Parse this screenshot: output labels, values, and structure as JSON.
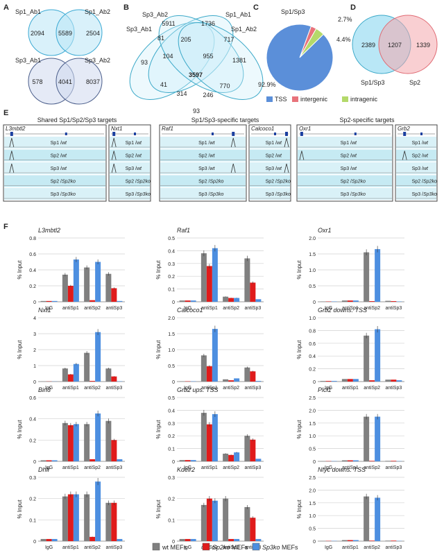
{
  "panel_letters": [
    "A",
    "B",
    "C",
    "D",
    "E",
    "F"
  ],
  "panelA": {
    "venn1": {
      "left_label": "Sp1_Ab1",
      "right_label": "Sp1_Ab2",
      "left": "2094",
      "overlap": "5589",
      "right": "2504"
    },
    "venn2": {
      "left_label": "Sp3_Ab1",
      "right_label": "Sp3_Ab2",
      "left": "578",
      "overlap": "4041",
      "right": "8037"
    }
  },
  "panelB": {
    "labels": [
      "Sp3_Ab2",
      "Sp3_Ab1",
      "Sp1_Ab1",
      "Sp1_Ab2"
    ],
    "numbers": [
      "5911",
      "1736",
      "81",
      "205",
      "717",
      "93",
      "104",
      "955",
      "1381",
      "3597",
      "41",
      "770",
      "314",
      "246",
      "93"
    ]
  },
  "panelC": {
    "title": "Sp1/Sp3",
    "slices": [
      {
        "name": "TSS",
        "value": 92.9,
        "label": "92.9%",
        "color": "#5b8fd9"
      },
      {
        "name": "intergenic",
        "value": 2.7,
        "label": "2.7%",
        "color": "#e8737b"
      },
      {
        "name": "intragenic",
        "value": 4.4,
        "label": "4.4%",
        "color": "#b4d96a"
      }
    ]
  },
  "panelD": {
    "left_label": "Sp1/Sp3",
    "right_label": "Sp2",
    "left": "2389",
    "overlap": "1207",
    "right": "1339"
  },
  "panelE": {
    "groups": [
      {
        "title": "Shared Sp1/Sp2/Sp3 targets",
        "genes": [
          "L3mbtl2",
          "Nxt1"
        ]
      },
      {
        "title": "Sp1/Sp3-specific targets",
        "genes": [
          "Raf1",
          "Calcoco1"
        ]
      },
      {
        "title": "Sp2-specific targets",
        "genes": [
          "Oxr1",
          "Grb2"
        ]
      }
    ],
    "tracks": [
      [
        "Sp1 / ",
        "wt"
      ],
      [
        "Sp2 / ",
        "wt"
      ],
      [
        "Sp3 / ",
        "wt"
      ],
      [
        "Sp2 / ",
        "Sp2ko"
      ],
      [
        "Sp3 / ",
        "Sp3ko"
      ]
    ]
  },
  "chart_data": [
    {
      "type": "bar",
      "title": "L3mbtl2",
      "ylabel": "% Input",
      "ylim": [
        0,
        0.8
      ],
      "ticks": [
        "0",
        "0.2",
        "0.4",
        "0.6",
        "0.8"
      ],
      "categories": [
        "IgG",
        "antiSp1",
        "antiSp2",
        "antiSp3"
      ],
      "series": [
        {
          "name": "wt MEFs",
          "values": [
            0.01,
            0.34,
            0.43,
            0.35
          ]
        },
        {
          "name": "Sp2ko MEFs",
          "values": [
            0.01,
            0.2,
            0.02,
            0.17
          ]
        },
        {
          "name": "Sp3ko MEFs",
          "values": [
            0.01,
            0.53,
            0.5,
            0.01
          ]
        }
      ]
    },
    {
      "type": "bar",
      "title": "Raf1",
      "ylabel": "% Input",
      "ylim": [
        0,
        0.5
      ],
      "ticks": [
        "0",
        "0.1",
        "0.2",
        "0.3",
        "0.4",
        "0.5"
      ],
      "categories": [
        "IgG",
        "antiSp1",
        "antiSp2",
        "antiSp3"
      ],
      "series": [
        {
          "name": "wt MEFs",
          "values": [
            0.01,
            0.38,
            0.04,
            0.34
          ]
        },
        {
          "name": "Sp2ko MEFs",
          "values": [
            0.01,
            0.28,
            0.03,
            0.15
          ]
        },
        {
          "name": "Sp3ko MEFs",
          "values": [
            0.01,
            0.42,
            0.03,
            0.02
          ]
        }
      ]
    },
    {
      "type": "bar",
      "title": "Oxr1",
      "ylabel": "% Input",
      "ylim": [
        0,
        2.0
      ],
      "ticks": [
        "0",
        "0.5",
        "1.0",
        "1.5",
        "2.0"
      ],
      "categories": [
        "IgG",
        "antiSp1",
        "antiSp2",
        "antiSp3"
      ],
      "series": [
        {
          "name": "wt MEFs",
          "values": [
            0.01,
            0.04,
            1.55,
            0.03
          ]
        },
        {
          "name": "Sp2ko MEFs",
          "values": [
            0.01,
            0.04,
            0.02,
            0.02
          ]
        },
        {
          "name": "Sp3ko MEFs",
          "values": [
            0.01,
            0.04,
            1.65,
            0.01
          ]
        }
      ]
    },
    {
      "type": "bar",
      "title": "Nxt1",
      "ylabel": "% Input",
      "ylim": [
        0,
        4
      ],
      "ticks": [
        "0",
        "1",
        "2",
        "3",
        "4"
      ],
      "categories": [
        "IgG",
        "antiSp1",
        "antiSp2",
        "antiSp3"
      ],
      "series": [
        {
          "name": "wt MEFs",
          "values": [
            0.01,
            0.82,
            1.8,
            0.82
          ]
        },
        {
          "name": "Sp2ko MEFs",
          "values": [
            0.01,
            0.45,
            0.04,
            0.32
          ]
        },
        {
          "name": "Sp3ko MEFs",
          "values": [
            0.01,
            1.1,
            3.1,
            0.02
          ]
        }
      ]
    },
    {
      "type": "bar",
      "title": "Calcoco1",
      "ylabel": "% Input",
      "ylim": [
        0,
        2.0
      ],
      "ticks": [
        "0",
        "0.5",
        "1.0",
        "1.5",
        "2.0"
      ],
      "categories": [
        "IgG",
        "antiSp1",
        "antiSp2",
        "antiSp3"
      ],
      "series": [
        {
          "name": "wt MEFs",
          "values": [
            0.01,
            0.82,
            0.07,
            0.44
          ]
        },
        {
          "name": "Sp2ko MEFs",
          "values": [
            0.01,
            0.48,
            0.04,
            0.32
          ]
        },
        {
          "name": "Sp3ko MEFs",
          "values": [
            0.01,
            1.65,
            0.1,
            0.02
          ]
        }
      ]
    },
    {
      "type": "bar",
      "title": "Grb2 downs. TSS",
      "ylabel": "% Input",
      "ylim": [
        0,
        1.0
      ],
      "ticks": [
        "0",
        "0.2",
        "0.4",
        "0.6",
        "0.8",
        "1.0"
      ],
      "categories": [
        "IgG",
        "antiSp1",
        "antiSp2",
        "antiSp3"
      ],
      "series": [
        {
          "name": "wt MEFs",
          "values": [
            0.01,
            0.04,
            0.72,
            0.03
          ]
        },
        {
          "name": "Sp2ko MEFs",
          "values": [
            0.01,
            0.04,
            0.02,
            0.03
          ]
        },
        {
          "name": "Sp3ko MEFs",
          "values": [
            0.01,
            0.04,
            0.82,
            0.02
          ]
        }
      ]
    },
    {
      "type": "bar",
      "title": "Bin3",
      "ylabel": "% Input",
      "ylim": [
        0,
        0.6
      ],
      "ticks": [
        "0",
        "0.2",
        "0.4",
        "0.6"
      ],
      "categories": [
        "IgG",
        "antiSp1",
        "antiSp2",
        "antiSp3"
      ],
      "series": [
        {
          "name": "wt MEFs",
          "values": [
            0.01,
            0.36,
            0.35,
            0.38
          ]
        },
        {
          "name": "Sp2ko MEFs",
          "values": [
            0.01,
            0.34,
            0.02,
            0.2
          ]
        },
        {
          "name": "Sp3ko MEFs",
          "values": [
            0.01,
            0.35,
            0.45,
            0.02
          ]
        }
      ]
    },
    {
      "type": "bar",
      "title": "Grb2 ups. TSS",
      "ylabel": "% Input",
      "ylim": [
        0,
        0.5
      ],
      "ticks": [
        "0",
        "0.1",
        "0.2",
        "0.3",
        "0.4",
        "0.5"
      ],
      "categories": [
        "IgG",
        "antiSp1",
        "antiSp2",
        "antiSp3"
      ],
      "series": [
        {
          "name": "wt MEFs",
          "values": [
            0.01,
            0.38,
            0.06,
            0.2
          ]
        },
        {
          "name": "Sp2ko MEFs",
          "values": [
            0.01,
            0.29,
            0.05,
            0.17
          ]
        },
        {
          "name": "Sp3ko MEFs",
          "values": [
            0.01,
            0.37,
            0.07,
            0.02
          ]
        }
      ]
    },
    {
      "type": "bar",
      "title": "Plcl1",
      "ylabel": "% Input",
      "ylim": [
        0,
        2.5
      ],
      "ticks": [
        "0",
        "0.5",
        "1.0",
        "1.5",
        "2.0",
        "2.5"
      ],
      "categories": [
        "IgG",
        "antiSp1",
        "antiSp2",
        "antiSp3"
      ],
      "series": [
        {
          "name": "wt MEFs",
          "values": [
            0.01,
            0.04,
            1.75,
            0.02
          ]
        },
        {
          "name": "Sp2ko MEFs",
          "values": [
            0.01,
            0.04,
            0.02,
            0.02
          ]
        },
        {
          "name": "Sp3ko MEFs",
          "values": [
            0.01,
            0.04,
            1.75,
            0.01
          ]
        }
      ]
    },
    {
      "type": "bar",
      "title": "Dhfr",
      "ylabel": "% Input",
      "ylim": [
        0,
        0.3
      ],
      "ticks": [
        "0",
        "0.1",
        "0.2",
        "0.3"
      ],
      "categories": [
        "IgG",
        "antiSp1",
        "antiSp2",
        "antiSp3"
      ],
      "series": [
        {
          "name": "wt MEFs",
          "values": [
            0.01,
            0.21,
            0.22,
            0.18
          ]
        },
        {
          "name": "Sp2ko MEFs",
          "values": [
            0.01,
            0.22,
            0.02,
            0.18
          ]
        },
        {
          "name": "Sp3ko MEFs",
          "values": [
            0.01,
            0.22,
            0.28,
            0.01
          ]
        }
      ]
    },
    {
      "type": "bar",
      "title": "Kdelr2",
      "ylabel": "% Input",
      "ylim": [
        0,
        0.3
      ],
      "ticks": [
        "0",
        "0.1",
        "0.2",
        "0.3"
      ],
      "categories": [
        "IgG",
        "antiSp1",
        "antiSp2",
        "antiSp3"
      ],
      "series": [
        {
          "name": "wt MEFs",
          "values": [
            0.01,
            0.17,
            0.2,
            0.16
          ]
        },
        {
          "name": "Sp2ko MEFs",
          "values": [
            0.01,
            0.2,
            0.01,
            0.11
          ]
        },
        {
          "name": "Sp3ko MEFs",
          "values": [
            0.01,
            0.19,
            0.01,
            0.01
          ]
        }
      ]
    },
    {
      "type": "bar",
      "title": "Nfyc downs. TSS",
      "ylabel": "% Input",
      "ylim": [
        0,
        2.5
      ],
      "ticks": [
        "0",
        "0.5",
        "1.0",
        "1.5",
        "2.0",
        "2.5"
      ],
      "categories": [
        "IgG",
        "antiSp1",
        "antiSp2",
        "antiSp3"
      ],
      "series": [
        {
          "name": "wt MEFs",
          "values": [
            0.01,
            0.04,
            1.75,
            0.02
          ]
        },
        {
          "name": "Sp2ko MEFs",
          "values": [
            0.01,
            0.04,
            0.02,
            0.02
          ]
        },
        {
          "name": "Sp3ko MEFs",
          "values": [
            0.01,
            0.04,
            1.7,
            0.01
          ]
        }
      ]
    }
  ],
  "legend": [
    {
      "prefix": "",
      "italic": "",
      "suffix": "wt MEFs",
      "color": "#808080"
    },
    {
      "prefix": "",
      "italic": "Sp2ko",
      "suffix": " MEFs",
      "color": "#e01b1b"
    },
    {
      "prefix": "",
      "italic": "Sp3ko",
      "suffix": " MEFs",
      "color": "#4d8fe0"
    }
  ]
}
